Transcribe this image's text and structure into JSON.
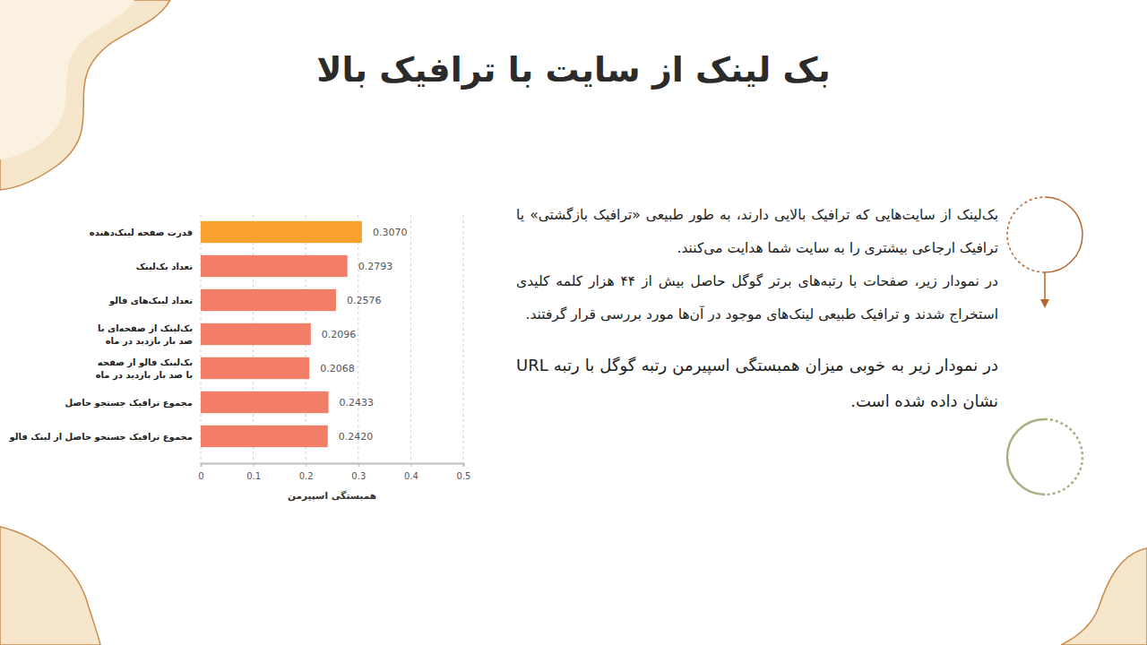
{
  "slide": {
    "title": "بک لینک از سایت با ترافیک بالا",
    "paragraphs": [
      "بک‌لینک از سایت‌هایی که ترافیک بالایی دارند، به طور طبیعی «ترافیک بازگشتی» یا ترافیک ارجاعی بیشتری را به سایت شما هدایت می‌کنند.",
      "در نمودار زیر، صفحات با رتبه‌های برتر گوگل حاصل بیش از ۴۴ هزار کلمه کلیدی استخراج شدند و ترافیک طبیعی لینک‌های موجود در آن‌ها مورد بررسی قرار گرفتند.",
      "در نمودار زیر به خوبی میزان همبستگی اسپیرمن رتبه گوگل با رتبه URL نشان داده شده است."
    ]
  },
  "chart_data": {
    "type": "bar",
    "orientation": "horizontal",
    "x_label": "همبستگی اسپیرمن",
    "categories": [
      "قدرت صفحه لینک‌دهنده",
      "تعداد بک‌لینک",
      "تعداد لینک‌های فالو",
      "بک‌لینک از صفحه‌ای با صد بار بازدید در ماه",
      "بک‌لینک فالو از صفحه با صد بار بازدید در ماه",
      "مجموع ترافیک جستجو حاصل",
      "مجموع ترافیک جستجو حاصل از لینک فالو"
    ],
    "values": [
      0.307,
      0.2793,
      0.2576,
      0.2096,
      0.2068,
      0.2433,
      0.242
    ],
    "value_labels": [
      "0.3070",
      "0.2793",
      "0.2576",
      "0.2096",
      "0.2068",
      "0.2433",
      "0.2420"
    ],
    "colors": [
      "#f9a12e",
      "#f37e68",
      "#f37e68",
      "#f37e68",
      "#f37e68",
      "#f37e68",
      "#f37e68"
    ],
    "xlim": [
      0,
      0.5
    ],
    "xticks": [
      0,
      0.1,
      0.2,
      0.3,
      0.4,
      0.5
    ],
    "grid": true,
    "data_labels": true
  }
}
